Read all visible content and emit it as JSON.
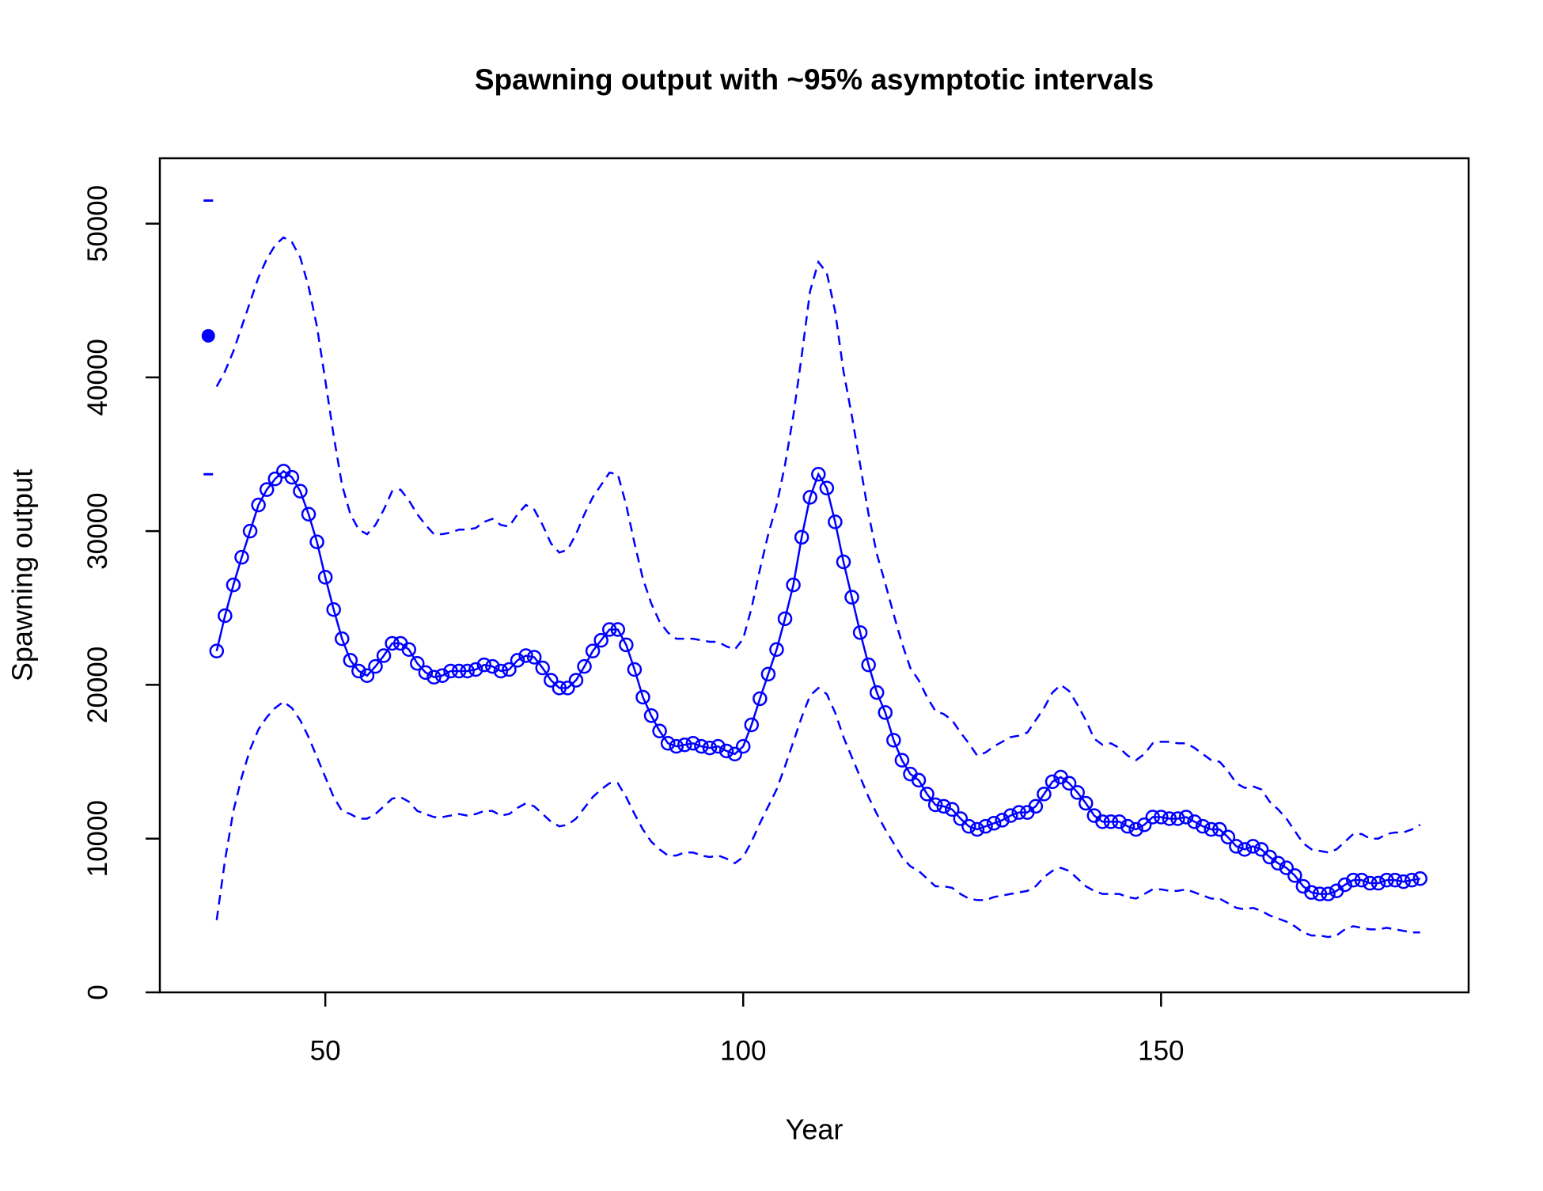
{
  "chart_data": {
    "type": "line",
    "title": "Spawning output with ~95% asymptotic intervals",
    "xlabel": "Year",
    "ylabel": "Spawning output",
    "xlim": [
      30.2,
      186.8
    ],
    "ylim": [
      0,
      54250
    ],
    "xticks": [
      50,
      100,
      150
    ],
    "yticks": [
      0,
      10000,
      20000,
      30000,
      40000,
      50000
    ],
    "grid": false,
    "color": "#0000ff",
    "virgin": {
      "x": 36,
      "value": 42700,
      "upper": 51500,
      "lower": 33700
    },
    "x": [
      37,
      38,
      39,
      40,
      41,
      42,
      43,
      44,
      45,
      46,
      47,
      48,
      49,
      50,
      51,
      52,
      53,
      54,
      55,
      56,
      57,
      58,
      59,
      60,
      61,
      62,
      63,
      64,
      65,
      66,
      67,
      68,
      69,
      70,
      71,
      72,
      73,
      74,
      75,
      76,
      77,
      78,
      79,
      80,
      81,
      82,
      83,
      84,
      85,
      86,
      87,
      88,
      89,
      90,
      91,
      92,
      93,
      94,
      95,
      96,
      97,
      98,
      99,
      100,
      101,
      102,
      103,
      104,
      105,
      106,
      107,
      108,
      109,
      110,
      111,
      112,
      113,
      114,
      115,
      116,
      117,
      118,
      119,
      120,
      121,
      122,
      123,
      124,
      125,
      126,
      127,
      128,
      129,
      130,
      131,
      132,
      133,
      134,
      135,
      136,
      137,
      138,
      139,
      140,
      141,
      142,
      143,
      144,
      145,
      146,
      147,
      148,
      149,
      150,
      151,
      152,
      153,
      154,
      155,
      156,
      157,
      158,
      159,
      160,
      161,
      162,
      163,
      164,
      165,
      166,
      167,
      168,
      169,
      170,
      171,
      172,
      173,
      174,
      175,
      176,
      177,
      178,
      179,
      180,
      181
    ],
    "series": [
      {
        "color": "#0000ff",
        "line_style": "solid",
        "markers": "circle",
        "values": [
          22200,
          24500,
          26500,
          28300,
          30000,
          31700,
          32700,
          33400,
          33900,
          33500,
          32600,
          31100,
          29300,
          27000,
          24900,
          23000,
          21600,
          20900,
          20600,
          21200,
          21900,
          22700,
          22700,
          22300,
          21400,
          20800,
          20500,
          20600,
          20900,
          20900,
          20900,
          21000,
          21300,
          21200,
          20900,
          21000,
          21600,
          21900,
          21800,
          21100,
          20300,
          19800,
          19800,
          20300,
          21200,
          22200,
          22900,
          23600,
          23600,
          22600,
          21000,
          19200,
          18000,
          17000,
          16200,
          16000,
          16100,
          16200,
          16000,
          15900,
          16000,
          15700,
          15500,
          16000,
          17400,
          19100,
          20700,
          22300,
          24300,
          26500,
          29600,
          32200,
          33700,
          32800,
          30600,
          28000,
          25700,
          23400,
          21300,
          19500,
          18200,
          16400,
          15100,
          14200,
          13800,
          12900,
          12200,
          12100,
          11900,
          11300,
          10800,
          10600,
          10800,
          11000,
          11200,
          11500,
          11700,
          11700,
          12100,
          12900,
          13700,
          14000,
          13600,
          13000,
          12300,
          11500,
          11100,
          11100,
          11100,
          10800,
          10600,
          10900,
          11400,
          11400,
          11300,
          11300,
          11400,
          11100,
          10800,
          10600,
          10600,
          10100,
          9500,
          9300,
          9500,
          9300,
          8800,
          8400,
          8100,
          7600,
          6900,
          6500,
          6400,
          6400,
          6600,
          7000,
          7300,
          7300,
          7100,
          7100,
          7300,
          7300,
          7200,
          7300,
          7400
        ]
      },
      {
        "color": "#0000ff",
        "line_style": "dashed",
        "markers": "none",
        "values": [
          39400,
          40400,
          41700,
          43300,
          44900,
          46500,
          47700,
          48600,
          49100,
          48800,
          47800,
          45900,
          43300,
          39800,
          36200,
          33000,
          31100,
          30100,
          29800,
          30400,
          31400,
          32600,
          32700,
          32000,
          31100,
          30400,
          29800,
          29800,
          29900,
          30100,
          30100,
          30200,
          30600,
          30800,
          30400,
          30300,
          31100,
          31700,
          31400,
          30400,
          29200,
          28600,
          28800,
          29800,
          31100,
          32200,
          33000,
          33800,
          33700,
          31700,
          29200,
          26900,
          25300,
          24100,
          23400,
          23000,
          23000,
          23000,
          22900,
          22800,
          22800,
          22500,
          22300,
          23000,
          25000,
          27500,
          29800,
          31700,
          34300,
          37500,
          41400,
          45600,
          47500,
          46800,
          44300,
          40400,
          37500,
          34300,
          31100,
          28500,
          26600,
          24600,
          22700,
          21100,
          20300,
          19200,
          18300,
          18100,
          17700,
          16900,
          16200,
          15400,
          15600,
          16000,
          16300,
          16600,
          16700,
          16900,
          17700,
          18500,
          19500,
          20000,
          19600,
          18700,
          17700,
          16500,
          16100,
          16200,
          15900,
          15400,
          15100,
          15500,
          16200,
          16300,
          16300,
          16200,
          16200,
          15900,
          15500,
          15100,
          15000,
          14400,
          13600,
          13300,
          13400,
          13200,
          12400,
          11900,
          11300,
          10500,
          9700,
          9300,
          9200,
          9100,
          9300,
          9800,
          10300,
          10300,
          10000,
          10000,
          10300,
          10400,
          10400,
          10600,
          10900
        ]
      },
      {
        "color": "#0000ff",
        "line_style": "dashed",
        "markers": "none",
        "values": [
          4700,
          8600,
          11800,
          14000,
          15800,
          17100,
          17900,
          18500,
          18900,
          18500,
          17700,
          16600,
          15300,
          14000,
          12700,
          11800,
          11600,
          11300,
          11300,
          11600,
          12100,
          12600,
          12700,
          12400,
          11800,
          11600,
          11400,
          11400,
          11500,
          11600,
          11500,
          11600,
          11800,
          11800,
          11500,
          11600,
          12000,
          12300,
          12100,
          11600,
          11100,
          10800,
          10900,
          11300,
          12000,
          12700,
          13200,
          13600,
          13600,
          12700,
          11600,
          10600,
          9800,
          9300,
          8900,
          8900,
          9100,
          9100,
          8900,
          8800,
          8900,
          8700,
          8400,
          8800,
          9800,
          11000,
          12100,
          13200,
          14700,
          16300,
          17900,
          19300,
          19800,
          19400,
          18200,
          16600,
          15300,
          14000,
          12700,
          11600,
          10600,
          9700,
          8800,
          8200,
          7900,
          7400,
          6900,
          6900,
          6800,
          6400,
          6100,
          6000,
          6000,
          6200,
          6300,
          6400,
          6500,
          6600,
          6900,
          7500,
          7900,
          8100,
          7900,
          7400,
          6900,
          6600,
          6400,
          6400,
          6400,
          6200,
          6100,
          6400,
          6700,
          6700,
          6600,
          6600,
          6700,
          6500,
          6300,
          6100,
          6100,
          5800,
          5500,
          5400,
          5500,
          5300,
          5000,
          4800,
          4600,
          4300,
          3900,
          3700,
          3700,
          3600,
          3700,
          4100,
          4300,
          4200,
          4100,
          4100,
          4200,
          4100,
          4000,
          3900,
          3900
        ]
      }
    ]
  }
}
